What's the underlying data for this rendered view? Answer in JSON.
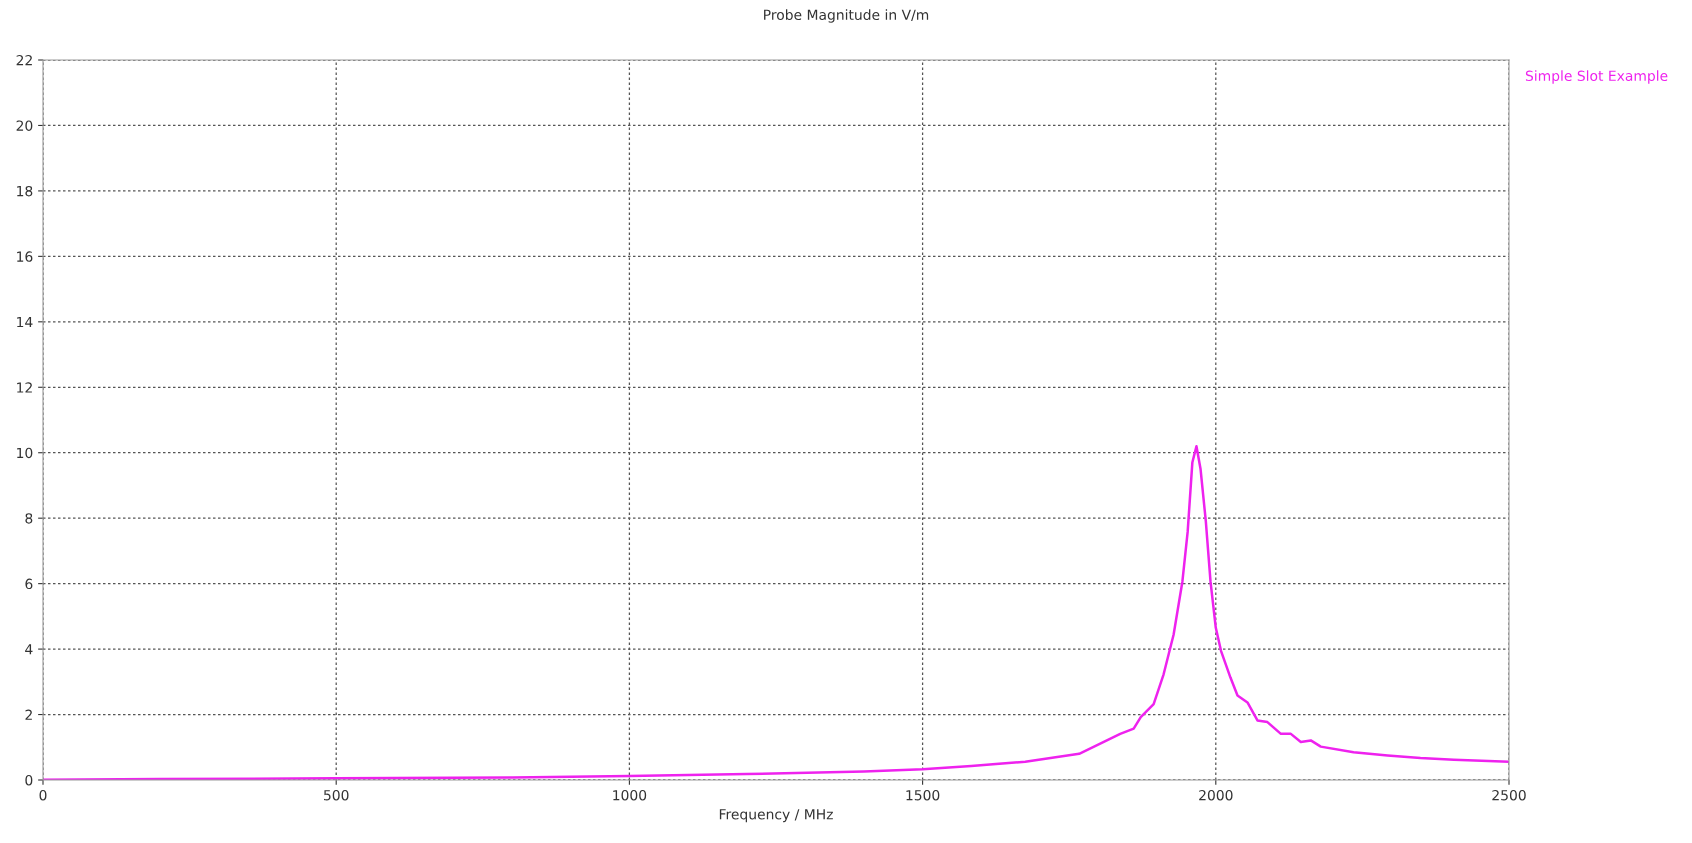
{
  "chart_data": {
    "type": "line",
    "title": "Probe Magnitude in V/m",
    "xlabel": "Frequency / MHz",
    "xlim": [
      0,
      2500
    ],
    "xticks": [
      0,
      500,
      1000,
      1500,
      2000,
      2500
    ],
    "ylim": [
      0,
      22
    ],
    "yticks": [
      0,
      2,
      4,
      6,
      8,
      10,
      12,
      14,
      16,
      18,
      20,
      22
    ],
    "grid": true,
    "legend": "top right",
    "marker": "none",
    "line_style": "solid",
    "series": [
      {
        "name": "Simple Slot Example",
        "color": "#ee22ee",
        "x": [
          0,
          200,
          500,
          800,
          1000,
          1200,
          1400,
          1500,
          1583,
          1675,
          1767,
          1837,
          1860,
          1872,
          1894,
          1911,
          1928,
          1943,
          1952,
          1960,
          1967,
          1974,
          1983,
          1991,
          2000,
          2009,
          2025,
          2037,
          2054,
          2071,
          2088,
          2111,
          2128,
          2145,
          2162,
          2179,
          2235,
          2293,
          2349,
          2406,
          2500
        ],
        "values": [
          0.01,
          0.03,
          0.05,
          0.08,
          0.12,
          0.18,
          0.26,
          0.33,
          0.43,
          0.56,
          0.8,
          1.41,
          1.57,
          1.92,
          2.32,
          3.23,
          4.44,
          6.06,
          7.58,
          9.7,
          10.2,
          9.5,
          7.9,
          6.06,
          4.65,
          3.94,
          3.13,
          2.58,
          2.37,
          1.82,
          1.77,
          1.41,
          1.41,
          1.16,
          1.21,
          1.02,
          0.85,
          0.75,
          0.67,
          0.62,
          0.56
        ]
      }
    ]
  }
}
